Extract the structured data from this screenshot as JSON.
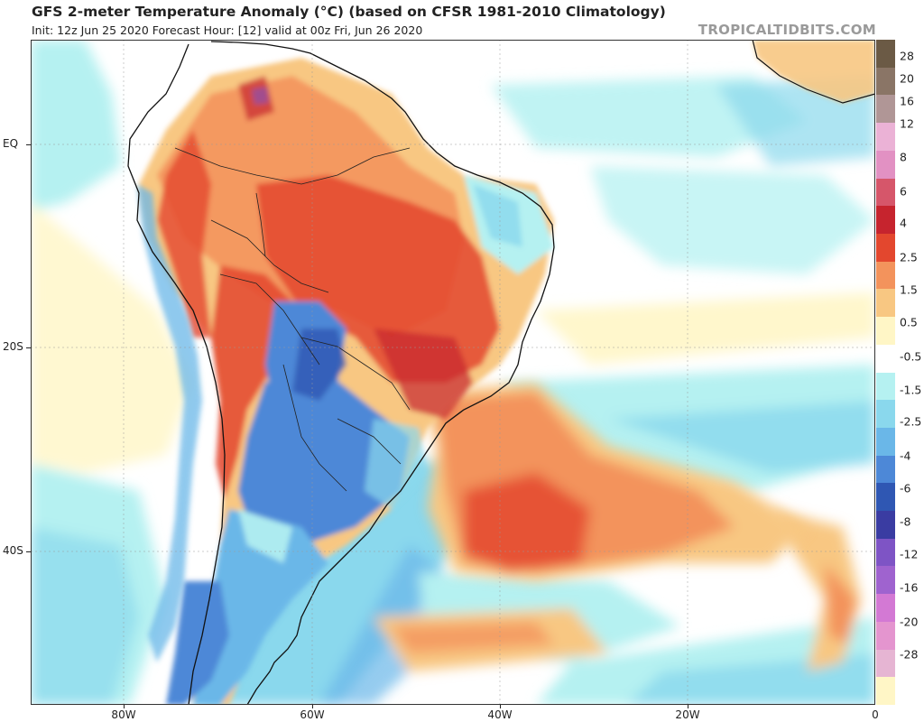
{
  "header": {
    "title": "GFS 2-meter Temperature Anomaly (°C) (based on CFSR 1981-2010 Climatology)",
    "subtitle": "Init: 12z Jun 25 2020   Forecast Hour: [12]   valid at 00z Fri, Jun 26 2020",
    "brand": "TROPICALTIDBITS.COM"
  },
  "axes": {
    "lat_labels": [
      "EQ",
      "20S",
      "40S"
    ],
    "lon_labels": [
      "80W",
      "60W",
      "40W",
      "20W",
      "0"
    ]
  },
  "colorbar": {
    "labels": [
      "28",
      "20",
      "16",
      "12",
      "8",
      "6",
      "4",
      "2.5",
      "1.5",
      "0.5",
      "-0.5",
      "-1.5",
      "-2.5",
      "-4",
      "-6",
      "-8",
      "-12",
      "-16",
      "-20",
      "-28"
    ],
    "colors": [
      "#6b5a45",
      "#8a7566",
      "#b09696",
      "#ebb2d6",
      "#e291c3",
      "#d6566a",
      "#c6242e",
      "#e3472e",
      "#f3935c",
      "#f8c782",
      "#fff6c6",
      "#ffffff",
      "#b5f1f1",
      "#8ad8ed",
      "#6ab7e8",
      "#4d88d7",
      "#2f57b3",
      "#3a3ca2",
      "#7e54c5",
      "#9f63cf",
      "#d379d4",
      "#e495cf",
      "#e6b5d3",
      "#fff6c6"
    ]
  }
}
